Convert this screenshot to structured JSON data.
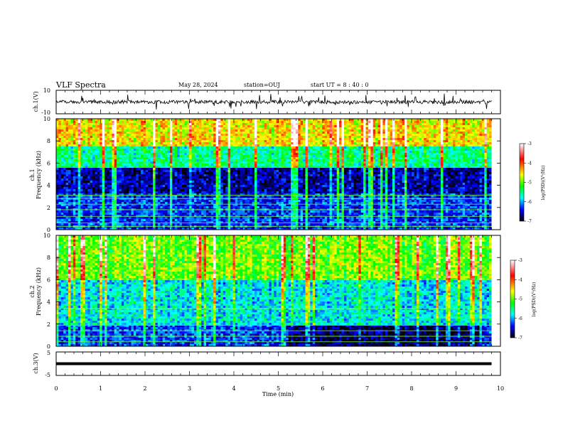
{
  "header": {
    "title": "VLF Spectra",
    "date": "May 28, 2024",
    "station": "station=OUJ",
    "start": "start  UT  =   8  : 40 : 0"
  },
  "panels": {
    "ch1_waveform": {
      "ylabel": "ch.1(V)",
      "ticks": [
        "10",
        "-10"
      ]
    },
    "ch1_spectrogram": {
      "ylabel_top": "ch.1",
      "ylabel": "Frequency (kHz)"
    },
    "ch2_spectrogram": {
      "ylabel_top": "ch.2",
      "ylabel": "Frequency (kHz)"
    },
    "ch3_waveform": {
      "ylabel": "ch.3(V)",
      "ticks": [
        "5",
        "-5"
      ]
    }
  },
  "colorbar": {
    "label": "log(PSD)(V²/Hz)",
    "ticks": [
      "-3",
      "-4",
      "-5",
      "-6",
      "-7"
    ],
    "colors": [
      "#ffffff",
      "#ff0000",
      "#ffff00",
      "#00ff00",
      "#00ffff",
      "#0000ff",
      "#000000"
    ]
  },
  "chart_data": [
    {
      "type": "line",
      "name": "ch1-waveform",
      "ylabel": "ch.1(V)",
      "xlim": [
        0,
        10
      ],
      "ylim": [
        -10,
        10
      ],
      "x_range_data": [
        0,
        9.8
      ],
      "baseline": 0,
      "description_values": {
        "typical_amplitude": 1.5,
        "spike_amplitude": 4
      }
    },
    {
      "type": "heatmap",
      "name": "ch1-spectrogram",
      "xlabel": "",
      "ylabel": "Frequency (kHz)",
      "xlim": [
        0,
        10
      ],
      "ylim": [
        0,
        10
      ],
      "x_range_data": [
        0,
        9.8
      ],
      "yticks": [
        "0",
        "2",
        "4",
        "6",
        "8",
        "10"
      ],
      "value_range": [
        -7,
        -3
      ],
      "bands_kHz": [
        {
          "from": 0,
          "to": 3.2,
          "log_psd": -6.3
        },
        {
          "from": 3.2,
          "to": 5.5,
          "log_psd": -6.6
        },
        {
          "from": 5.5,
          "to": 7.5,
          "log_psd": -5.5
        },
        {
          "from": 7.5,
          "to": 10,
          "log_psd": -4.5
        }
      ],
      "horizontal_lines_kHz": [
        0.3,
        0.6,
        1.2,
        1.8,
        2.3,
        2.8,
        3.1
      ]
    },
    {
      "type": "heatmap",
      "name": "ch2-spectrogram",
      "xlabel": "",
      "ylabel": "Frequency (kHz)",
      "xlim": [
        0,
        10
      ],
      "ylim": [
        0,
        10
      ],
      "x_range_data": [
        0,
        9.8
      ],
      "yticks": [
        "0",
        "2",
        "4",
        "6",
        "8",
        "10"
      ],
      "value_range": [
        -7,
        -3
      ],
      "bands_kHz": [
        {
          "from": 0,
          "to": 2,
          "log_psd": -6.3
        },
        {
          "from": 2,
          "to": 6,
          "log_psd": -5.8
        },
        {
          "from": 6,
          "to": 10,
          "log_psd": -5.0
        }
      ],
      "quiet_region": {
        "x_from": 5.2,
        "x_to": 9.6,
        "f_from": 0,
        "f_to": 2,
        "log_psd": -6.8
      },
      "horizontal_lines_kHz": [
        0.4,
        0.9,
        1.4,
        1.9,
        3.4
      ]
    },
    {
      "type": "line",
      "name": "ch3-waveform",
      "xlabel": "Time (min)",
      "ylabel": "ch.3(V)",
      "xlim": [
        0,
        10
      ],
      "ylim": [
        -5,
        5
      ],
      "x_range_data": [
        0,
        9.8
      ],
      "baseline": 0,
      "xticks": [
        "0",
        "1",
        "2",
        "3",
        "4",
        "5",
        "6",
        "7",
        "8",
        "9",
        "10"
      ]
    }
  ]
}
